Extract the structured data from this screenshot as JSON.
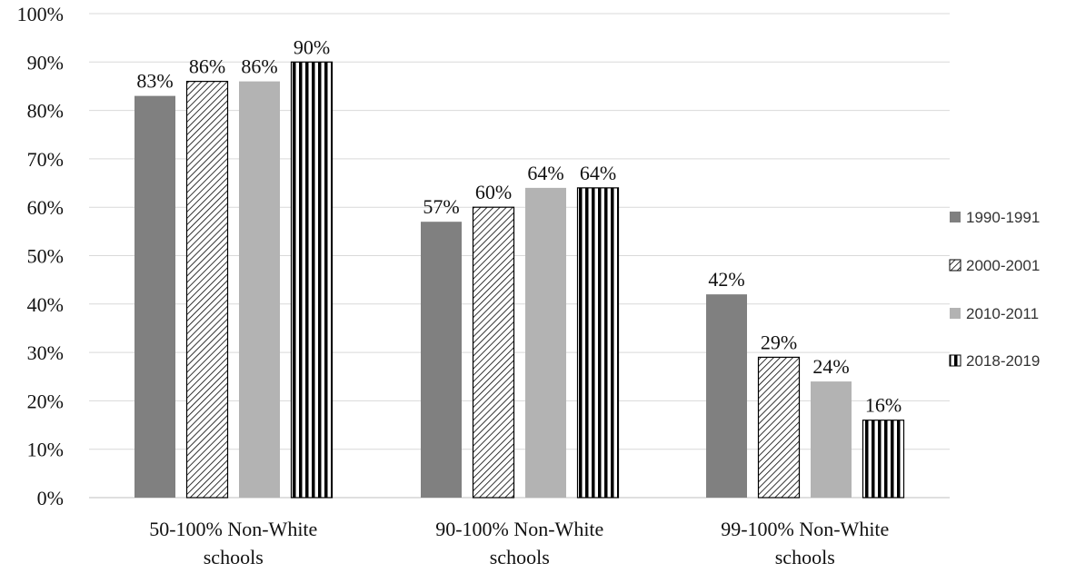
{
  "chart_data": {
    "type": "bar",
    "categories": [
      [
        "50-100% Non-White",
        "schools"
      ],
      [
        "90-100% Non-White",
        "schools"
      ],
      [
        "99-100% Non-White",
        "schools"
      ]
    ],
    "series": [
      {
        "name": "1990-1991",
        "values": [
          83,
          57,
          42
        ],
        "labels": [
          "83%",
          "57%",
          "42%"
        ],
        "color": "#808080",
        "pattern": "solid"
      },
      {
        "name": "2000-2001",
        "values": [
          86,
          60,
          29
        ],
        "labels": [
          "86%",
          "60%",
          "29%"
        ],
        "color": "#000000",
        "pattern": "diagonal-hatch"
      },
      {
        "name": "2010-2011",
        "values": [
          86,
          64,
          24
        ],
        "labels": [
          "86%",
          "64%",
          "24%"
        ],
        "color": "#b3b3b3",
        "pattern": "solid"
      },
      {
        "name": "2018-2019",
        "values": [
          90,
          64,
          16
        ],
        "labels": [
          "90%",
          "64%",
          "16%"
        ],
        "color": "#000000",
        "pattern": "vertical-stripes"
      }
    ],
    "yticks": [
      "0%",
      "10%",
      "20%",
      "30%",
      "40%",
      "50%",
      "60%",
      "70%",
      "80%",
      "90%",
      "100%"
    ],
    "ylim": [
      0,
      100
    ],
    "grid": true,
    "legend": "right"
  }
}
